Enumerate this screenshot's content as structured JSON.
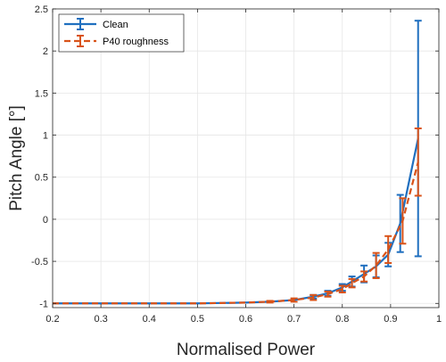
{
  "chart_data": {
    "type": "line",
    "title": "",
    "xlabel": "Normalised Power",
    "ylabel": "Pitch Angle [°]",
    "xlim": [
      0.2,
      1.0
    ],
    "ylim": [
      -1.05,
      2.5
    ],
    "xticks": [
      0.2,
      0.3,
      0.4,
      0.5,
      0.6,
      0.7,
      0.8,
      0.9,
      1.0
    ],
    "xtick_labels": [
      "0.2",
      "0.3",
      "0.4",
      "0.5",
      "0.6",
      "0.7",
      "0.8",
      "0.9",
      "1"
    ],
    "yticks": [
      -1,
      -0.5,
      0,
      0.5,
      1,
      1.5,
      2,
      2.5
    ],
    "ytick_labels": [
      "-1",
      "-0.5",
      "0",
      "0.5",
      "1",
      "1.5",
      "2",
      "2.5"
    ],
    "grid": true,
    "legend_position": "top-left",
    "series": [
      {
        "name": "Clean",
        "color": "#1f6fbf",
        "style": "solid",
        "x": [
          0.2,
          0.3,
          0.4,
          0.5,
          0.6,
          0.65,
          0.7,
          0.74,
          0.77,
          0.8,
          0.82,
          0.845,
          0.87,
          0.895,
          0.92,
          0.957
        ],
        "y": [
          -1.0,
          -1.0,
          -1.0,
          -1.0,
          -0.99,
          -0.98,
          -0.96,
          -0.92,
          -0.88,
          -0.81,
          -0.74,
          -0.65,
          -0.56,
          -0.42,
          -0.05,
          0.96
        ],
        "err": [
          0.0,
          0.0,
          0.0,
          0.0,
          0.0,
          0.0,
          0.0,
          0.02,
          0.03,
          0.04,
          0.06,
          0.1,
          0.13,
          0.14,
          0.34,
          1.4
        ]
      },
      {
        "name": "P40 roughness",
        "color": "#d95319",
        "style": "dashed",
        "x": [
          0.2,
          0.3,
          0.4,
          0.5,
          0.6,
          0.65,
          0.7,
          0.74,
          0.77,
          0.8,
          0.82,
          0.845,
          0.87,
          0.895,
          0.925,
          0.957
        ],
        "y": [
          -1.0,
          -1.0,
          -1.0,
          -1.0,
          -0.99,
          -0.98,
          -0.96,
          -0.93,
          -0.89,
          -0.83,
          -0.76,
          -0.68,
          -0.55,
          -0.36,
          -0.02,
          0.68
        ],
        "err": [
          0.0,
          0.0,
          0.0,
          0.0,
          0.0,
          0.01,
          0.02,
          0.03,
          0.03,
          0.04,
          0.05,
          0.06,
          0.15,
          0.16,
          0.27,
          0.4
        ]
      }
    ]
  }
}
